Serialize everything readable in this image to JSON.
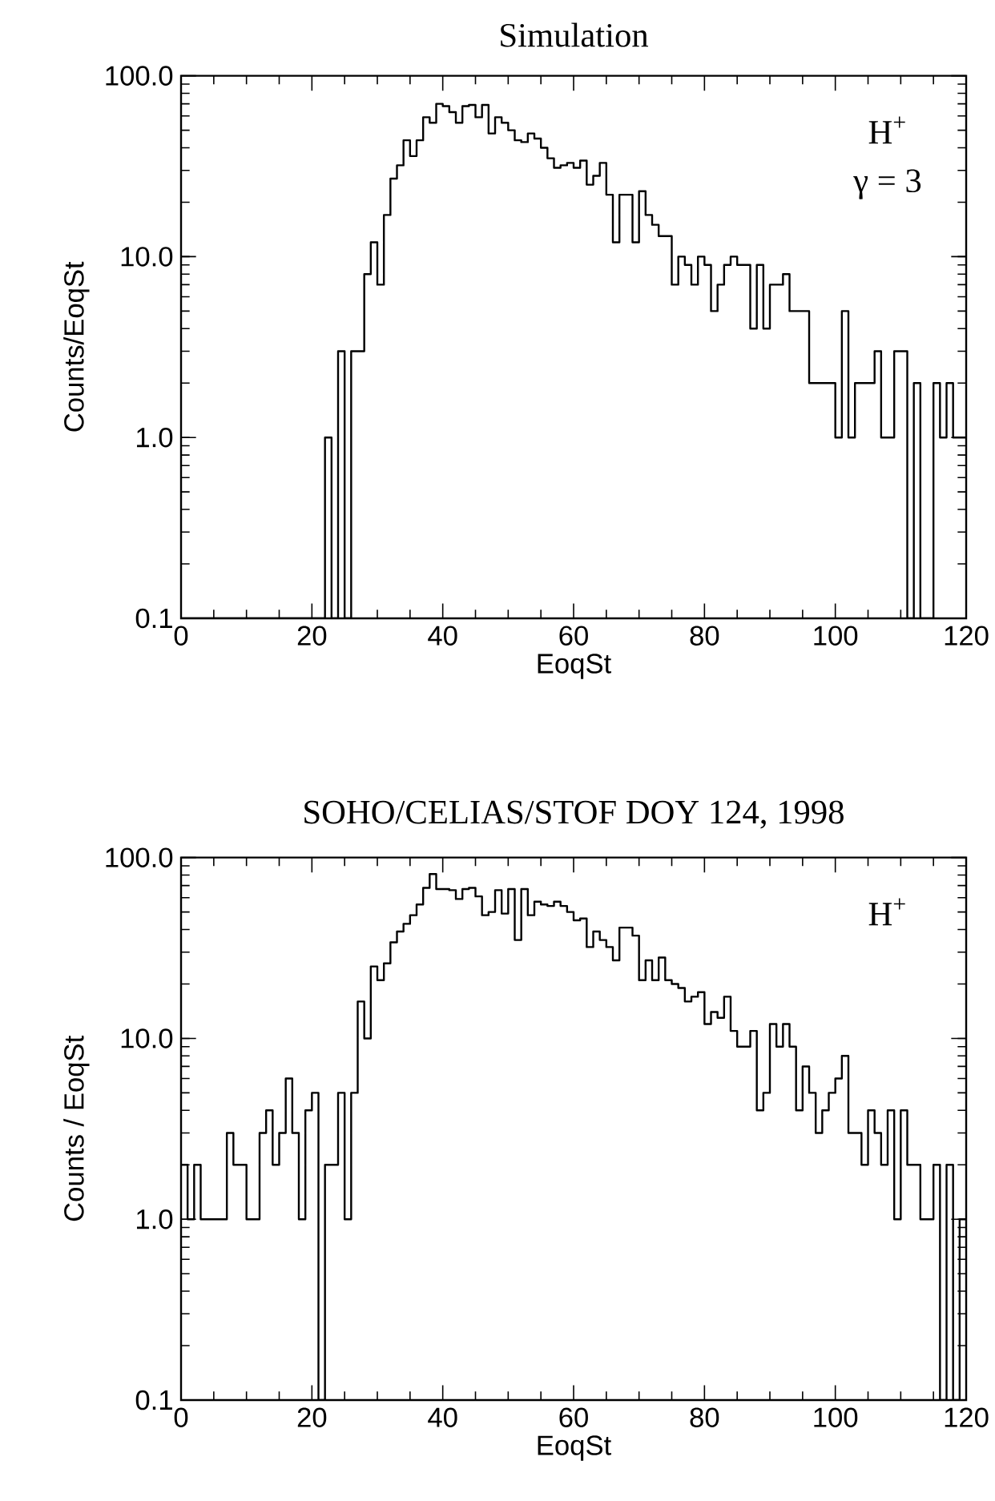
{
  "chart_data": [
    {
      "type": "histogram",
      "title": "Simulation",
      "xlabel": "EoqSt",
      "ylabel": "Counts/EoqSt",
      "color": "#000000",
      "log": true,
      "annotations": [
        "H$^{+}$",
        "γ = 3"
      ],
      "bins": [
        0,
        1,
        2,
        3,
        4,
        5,
        6,
        7,
        8,
        9,
        10,
        11,
        12,
        13,
        14,
        15,
        16,
        17,
        18,
        19,
        20,
        21,
        22,
        23,
        24,
        25,
        26,
        27,
        28,
        29,
        30,
        31,
        32,
        33,
        34,
        35,
        36,
        37,
        38,
        39,
        40,
        41,
        42,
        43,
        44,
        45,
        46,
        47,
        48,
        49,
        50,
        51,
        52,
        53,
        54,
        55,
        56,
        57,
        58,
        59,
        60,
        61,
        62,
        63,
        64,
        65,
        66,
        67,
        68,
        69,
        70,
        71,
        72,
        73,
        74,
        75,
        76,
        77,
        78,
        79,
        80,
        81,
        82,
        83,
        84,
        85,
        86,
        87,
        88,
        89,
        90,
        91,
        92,
        93,
        94,
        95,
        96,
        97,
        98,
        99,
        100,
        101,
        102,
        103,
        104,
        105,
        106,
        107,
        108,
        109,
        110,
        111,
        112,
        113,
        114,
        115,
        116,
        117,
        118,
        119,
        120
      ],
      "values": [
        null,
        null,
        null,
        null,
        null,
        null,
        null,
        null,
        null,
        null,
        null,
        null,
        null,
        null,
        null,
        null,
        null,
        null,
        null,
        null,
        null,
        null,
        1,
        null,
        3,
        null,
        3,
        3,
        8,
        12,
        7,
        17,
        27,
        32,
        44,
        36,
        44,
        59,
        55,
        70,
        68,
        63,
        55,
        68,
        69,
        59,
        69,
        48,
        59,
        55,
        50,
        44,
        43,
        48,
        45,
        40,
        35,
        31,
        32,
        33,
        31,
        34,
        25,
        28,
        33,
        22,
        12,
        22,
        22,
        12,
        23,
        17,
        15,
        13,
        13,
        7,
        10,
        9,
        7,
        10,
        9,
        5,
        7,
        9,
        10,
        9,
        9,
        4,
        9,
        4,
        7,
        7,
        8,
        5,
        5,
        5,
        2,
        2,
        2,
        2,
        1,
        5,
        1,
        2,
        2,
        2,
        3,
        1,
        1,
        3,
        3,
        null,
        2,
        null,
        null,
        2,
        1,
        2,
        1,
        1
      ],
      "xlim": [
        0,
        120
      ],
      "xticks": [
        0,
        20,
        40,
        60,
        80,
        100,
        120
      ],
      "ylim": [
        0.1,
        100
      ],
      "yticks": [
        {
          "value": 0.1,
          "label": "0.1"
        },
        {
          "value": 1,
          "label": "1.0"
        },
        {
          "value": 10,
          "label": "10.0"
        },
        {
          "value": 100,
          "label": "100.0"
        }
      ]
    },
    {
      "type": "histogram",
      "title": "SOHO/CELIAS/STOF    DOY 124, 1998",
      "xlabel": "EoqSt",
      "ylabel": "Counts / EoqSt",
      "color": "#000000",
      "log": true,
      "annotations": [
        "H$^{+}$"
      ],
      "bins": [
        0,
        1,
        2,
        3,
        4,
        5,
        6,
        7,
        8,
        9,
        10,
        11,
        12,
        13,
        14,
        15,
        16,
        17,
        18,
        19,
        20,
        21,
        22,
        23,
        24,
        25,
        26,
        27,
        28,
        29,
        30,
        31,
        32,
        33,
        34,
        35,
        36,
        37,
        38,
        39,
        40,
        41,
        42,
        43,
        44,
        45,
        46,
        47,
        48,
        49,
        50,
        51,
        52,
        53,
        54,
        55,
        56,
        57,
        58,
        59,
        60,
        61,
        62,
        63,
        64,
        65,
        66,
        67,
        68,
        69,
        70,
        71,
        72,
        73,
        74,
        75,
        76,
        77,
        78,
        79,
        80,
        81,
        82,
        83,
        84,
        85,
        86,
        87,
        88,
        89,
        90,
        91,
        92,
        93,
        94,
        95,
        96,
        97,
        98,
        99,
        100,
        101,
        102,
        103,
        104,
        105,
        106,
        107,
        108,
        109,
        110,
        111,
        112,
        113,
        114,
        115,
        116,
        117,
        118,
        119,
        120
      ],
      "values": [
        2,
        1,
        2,
        1,
        1,
        1,
        1,
        3,
        2,
        2,
        1,
        1,
        3,
        4,
        2,
        3,
        6,
        3,
        1,
        4,
        5,
        null,
        2,
        2,
        5,
        1,
        5,
        16,
        10,
        25,
        21,
        26,
        34,
        39,
        43,
        48,
        55,
        68,
        81,
        67,
        67,
        66,
        59,
        67,
        68,
        61,
        48,
        50,
        66,
        49,
        67,
        35,
        67,
        48,
        57,
        55,
        54,
        57,
        54,
        50,
        45,
        46,
        32,
        39,
        35,
        32,
        27,
        41,
        41,
        37,
        21,
        27,
        21,
        28,
        21,
        20,
        19,
        16,
        17,
        18,
        12,
        14,
        13,
        17,
        11,
        9,
        9,
        11,
        4,
        5,
        12,
        9,
        12,
        9,
        4,
        7,
        5,
        3,
        4,
        5,
        6,
        8,
        3,
        3,
        2,
        4,
        3,
        2,
        4,
        1,
        4,
        2,
        2,
        1,
        1,
        2,
        null,
        2,
        null,
        1
      ],
      "xlim": [
        0,
        120
      ],
      "xticks": [
        0,
        20,
        40,
        60,
        80,
        100,
        120
      ],
      "ylim": [
        0.1,
        100
      ],
      "yticks": [
        {
          "value": 0.1,
          "label": "0.1"
        },
        {
          "value": 1,
          "label": "1.0"
        },
        {
          "value": 10,
          "label": "10.0"
        },
        {
          "value": 100,
          "label": "100.0"
        }
      ]
    }
  ]
}
